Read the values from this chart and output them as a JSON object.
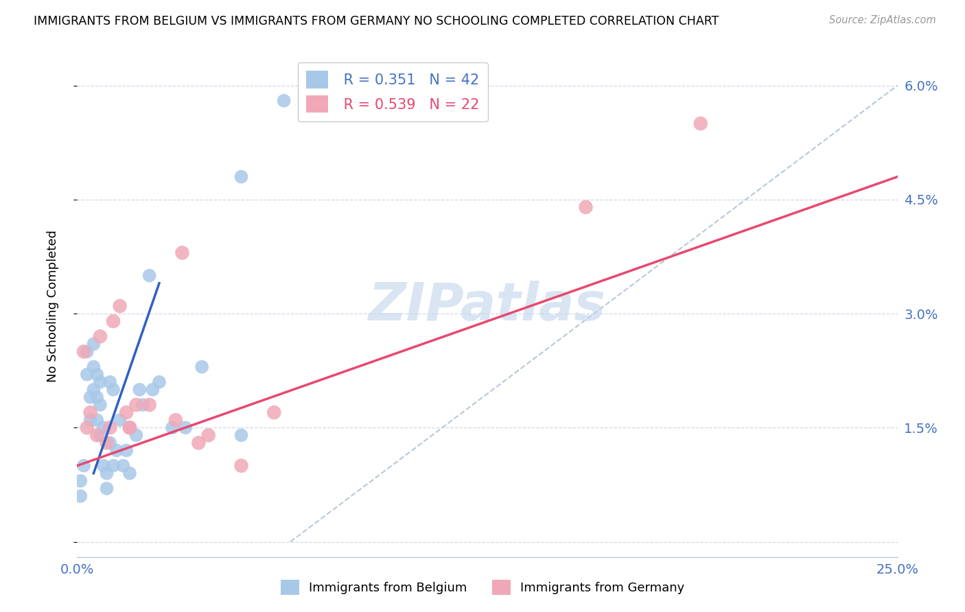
{
  "title": "IMMIGRANTS FROM BELGIUM VS IMMIGRANTS FROM GERMANY NO SCHOOLING COMPLETED CORRELATION CHART",
  "source": "Source: ZipAtlas.com",
  "ylabel": "No Schooling Completed",
  "xlim": [
    0.0,
    0.25
  ],
  "ylim": [
    -0.002,
    0.064
  ],
  "belgium_R": 0.351,
  "belgium_N": 42,
  "germany_R": 0.539,
  "germany_N": 22,
  "belgium_color": "#a8c8e8",
  "germany_color": "#f0a8b8",
  "belgium_line_color": "#3060c0",
  "germany_line_color": "#e84870",
  "diag_line_color": "#b8c8d8",
  "watermark_color": "#c5d8ec",
  "belgium_line_x": [
    0.005,
    0.025
  ],
  "belgium_line_y": [
    0.009,
    0.034
  ],
  "germany_line_x": [
    0.0,
    0.25
  ],
  "germany_line_y": [
    0.01,
    0.048
  ],
  "diag_line_x": [
    0.065,
    0.25
  ],
  "diag_line_y": [
    0.0,
    0.06
  ],
  "belgium_x": [
    0.001,
    0.001,
    0.002,
    0.003,
    0.003,
    0.004,
    0.004,
    0.005,
    0.005,
    0.005,
    0.006,
    0.006,
    0.006,
    0.007,
    0.007,
    0.007,
    0.008,
    0.008,
    0.009,
    0.009,
    0.01,
    0.01,
    0.011,
    0.011,
    0.012,
    0.013,
    0.014,
    0.015,
    0.016,
    0.016,
    0.018,
    0.019,
    0.02,
    0.022,
    0.023,
    0.025,
    0.029,
    0.033,
    0.038,
    0.05,
    0.05,
    0.063
  ],
  "belgium_y": [
    0.008,
    0.006,
    0.01,
    0.025,
    0.022,
    0.019,
    0.016,
    0.026,
    0.023,
    0.02,
    0.022,
    0.019,
    0.016,
    0.021,
    0.018,
    0.014,
    0.015,
    0.01,
    0.009,
    0.007,
    0.021,
    0.013,
    0.02,
    0.01,
    0.012,
    0.016,
    0.01,
    0.012,
    0.015,
    0.009,
    0.014,
    0.02,
    0.018,
    0.035,
    0.02,
    0.021,
    0.015,
    0.015,
    0.023,
    0.048,
    0.014,
    0.058
  ],
  "germany_x": [
    0.002,
    0.003,
    0.004,
    0.006,
    0.007,
    0.009,
    0.01,
    0.011,
    0.013,
    0.015,
    0.016,
    0.016,
    0.018,
    0.022,
    0.03,
    0.032,
    0.037,
    0.04,
    0.05,
    0.06,
    0.155,
    0.19
  ],
  "germany_y": [
    0.025,
    0.015,
    0.017,
    0.014,
    0.027,
    0.013,
    0.015,
    0.029,
    0.031,
    0.017,
    0.015,
    0.015,
    0.018,
    0.018,
    0.016,
    0.038,
    0.013,
    0.014,
    0.01,
    0.017,
    0.044,
    0.055
  ],
  "figsize": [
    14.06,
    8.92
  ],
  "dpi": 100
}
